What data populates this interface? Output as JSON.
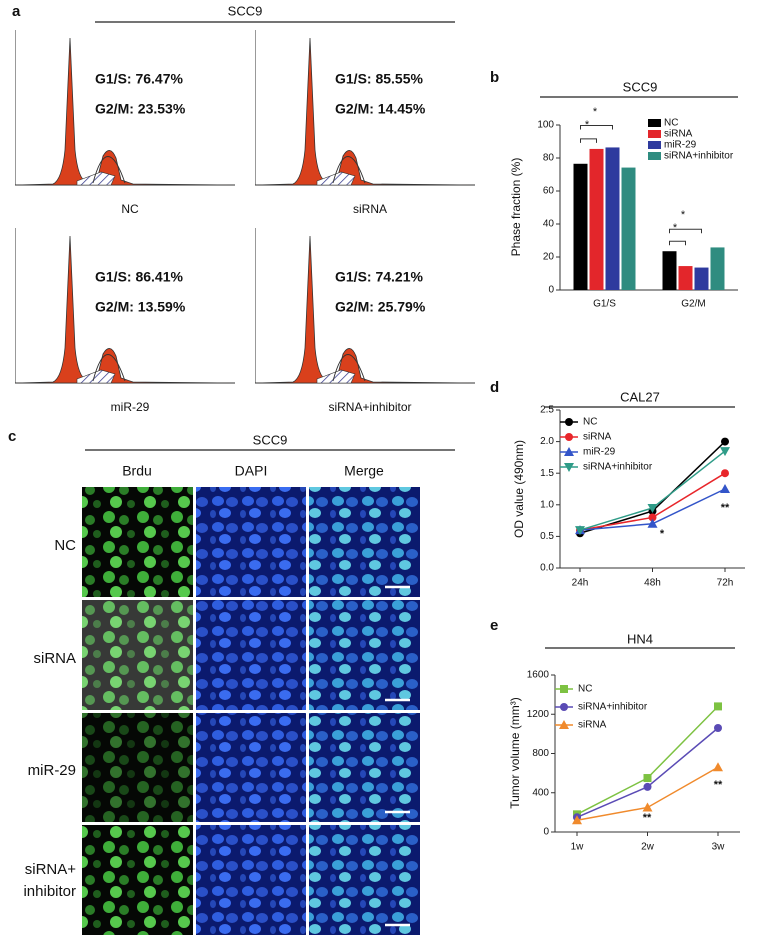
{
  "flow": {
    "panel_label": "a",
    "title": "SCC9",
    "panels": [
      {
        "g1s": "G1/S: 76.47%",
        "g2m": "G2/M: 23.53%",
        "label": "NC"
      },
      {
        "g1s": "G1/S: 85.55%",
        "g2m": "G2/M: 14.45%",
        "label": "siRNA"
      },
      {
        "g1s": "G1/S: 86.41%",
        "g2m": "G2/M: 13.59%",
        "label": "miR-29"
      },
      {
        "g1s": "G1/S: 74.21%",
        "g2m": "G2/M: 25.79%",
        "label": "siRNA+inhibitor"
      }
    ]
  },
  "imaging": {
    "panel_label": "c",
    "title": "SCC9",
    "columns": [
      "Brdu",
      "DAPI",
      "Merge"
    ],
    "rows": [
      "NC",
      "siRNA",
      "miR-29",
      [
        "siRNA+",
        "inhibitor"
      ]
    ]
  },
  "chart_data": [
    {
      "type": "bar",
      "panel_label": "b",
      "title": "SCC9",
      "ylabel": "Phase fraction (%)",
      "categories": [
        "G1/S",
        "G2/M"
      ],
      "series": [
        {
          "name": "NC",
          "color": "#000000",
          "values": [
            76.5,
            23.5
          ]
        },
        {
          "name": "siRNA",
          "color": "#e3262b",
          "values": [
            85.5,
            14.5
          ]
        },
        {
          "name": "miR-29",
          "color": "#2e3a9e",
          "values": [
            86.4,
            13.6
          ]
        },
        {
          "name": "siRNA+inhibitor",
          "color": "#2f8c80",
          "values": [
            74.2,
            25.8
          ]
        }
      ],
      "ylim": [
        0,
        100
      ],
      "yticks": [
        0,
        20,
        40,
        60,
        80,
        100
      ],
      "grid": false,
      "legend": "upper right",
      "annotations": [
        "*",
        "*",
        "*",
        "*"
      ]
    },
    {
      "type": "line",
      "panel_label": "d",
      "title": "CAL27",
      "ylabel": "OD value (490nm)",
      "categories": [
        "24h",
        "48h",
        "72h"
      ],
      "series": [
        {
          "name": "NC",
          "color": "#000000",
          "marker": "circle",
          "values": [
            0.55,
            0.9,
            2.0
          ]
        },
        {
          "name": "siRNA",
          "color": "#e8262b",
          "marker": "circle",
          "values": [
            0.6,
            0.8,
            1.5
          ]
        },
        {
          "name": "miR-29",
          "color": "#3355c9",
          "marker": "triangle",
          "values": [
            0.6,
            0.7,
            1.25
          ]
        },
        {
          "name": "siRNA+inhibitor",
          "color": "#2f9c88",
          "marker": "triangle-down",
          "values": [
            0.6,
            0.95,
            1.85
          ]
        }
      ],
      "ylim": [
        0,
        2.5
      ],
      "yticks": [
        {
          "value": 0,
          "label": "0.0"
        },
        0.5,
        {
          "value": 1,
          "label": "1.0"
        },
        1.5,
        {
          "value": 2,
          "label": "2.0"
        },
        2.5
      ],
      "grid": false,
      "legend": "upper left",
      "annotations": [
        "*",
        "**"
      ]
    },
    {
      "type": "line",
      "panel_label": "e",
      "title": "HN4",
      "ylabel": "Tumor volume (mm³)",
      "categories": [
        "1w",
        "2w",
        "3w"
      ],
      "series": [
        {
          "name": "NC",
          "color": "#7dc242",
          "marker": "square",
          "values": [
            180,
            550,
            1280
          ]
        },
        {
          "name": "siRNA+inhibitor",
          "color": "#5a4bb5",
          "marker": "circle",
          "values": [
            150,
            460,
            1060
          ]
        },
        {
          "name": "siRNA",
          "color": "#f08a2c",
          "marker": "triangle",
          "values": [
            120,
            250,
            660
          ]
        }
      ],
      "ylim": [
        0,
        1600
      ],
      "yticks": [
        0,
        400,
        800,
        1200,
        1600
      ],
      "grid": false,
      "legend": "upper left",
      "annotations": [
        "**",
        "**"
      ]
    }
  ]
}
